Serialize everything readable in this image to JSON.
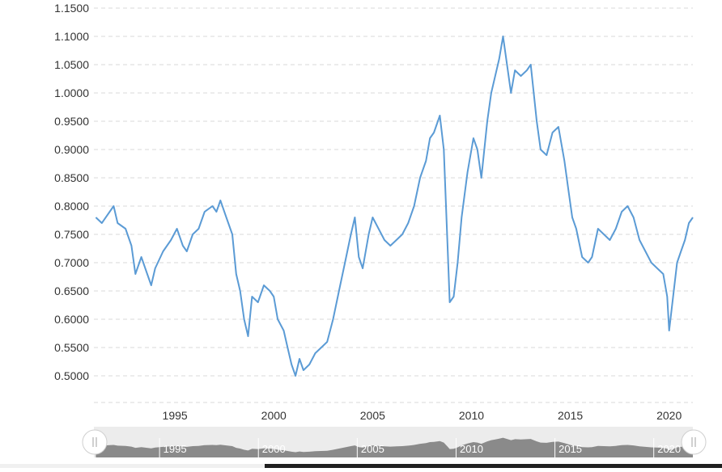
{
  "chart_data": {
    "type": "line",
    "title": "",
    "xlabel": "",
    "ylabel": "",
    "xlim": [
      1990.9,
      2021.2
    ],
    "ylim": [
      0.45,
      1.15
    ],
    "grid": true,
    "y_ticks": [
      "0.5000",
      "0.5500",
      "0.6000",
      "0.6500",
      "0.7000",
      "0.7500",
      "0.8000",
      "0.8500",
      "0.9000",
      "0.9500",
      "1.0000",
      "1.0500",
      "1.1000",
      "1.1500"
    ],
    "x_ticks": [
      "1995",
      "2000",
      "2005",
      "2010",
      "2015",
      "2020"
    ],
    "series": [
      {
        "color": "#5b9bd5",
        "points": [
          [
            1991.0,
            0.78
          ],
          [
            1991.3,
            0.77
          ],
          [
            1991.7,
            0.79
          ],
          [
            1991.9,
            0.8
          ],
          [
            1992.1,
            0.77
          ],
          [
            1992.5,
            0.76
          ],
          [
            1992.8,
            0.73
          ],
          [
            1993.0,
            0.68
          ],
          [
            1993.3,
            0.71
          ],
          [
            1993.6,
            0.68
          ],
          [
            1993.8,
            0.66
          ],
          [
            1994.0,
            0.69
          ],
          [
            1994.4,
            0.72
          ],
          [
            1994.8,
            0.74
          ],
          [
            1995.1,
            0.76
          ],
          [
            1995.4,
            0.73
          ],
          [
            1995.6,
            0.72
          ],
          [
            1995.9,
            0.75
          ],
          [
            1996.2,
            0.76
          ],
          [
            1996.5,
            0.79
          ],
          [
            1996.9,
            0.8
          ],
          [
            1997.1,
            0.79
          ],
          [
            1997.3,
            0.81
          ],
          [
            1997.6,
            0.78
          ],
          [
            1997.9,
            0.75
          ],
          [
            1998.1,
            0.68
          ],
          [
            1998.3,
            0.65
          ],
          [
            1998.5,
            0.6
          ],
          [
            1998.7,
            0.57
          ],
          [
            1998.9,
            0.64
          ],
          [
            1999.2,
            0.63
          ],
          [
            1999.5,
            0.66
          ],
          [
            1999.8,
            0.65
          ],
          [
            2000.0,
            0.64
          ],
          [
            2000.2,
            0.6
          ],
          [
            2000.5,
            0.58
          ],
          [
            2000.7,
            0.55
          ],
          [
            2000.9,
            0.52
          ],
          [
            2001.1,
            0.5
          ],
          [
            2001.3,
            0.53
          ],
          [
            2001.5,
            0.51
          ],
          [
            2001.8,
            0.52
          ],
          [
            2002.1,
            0.54
          ],
          [
            2002.4,
            0.55
          ],
          [
            2002.7,
            0.56
          ],
          [
            2003.0,
            0.6
          ],
          [
            2003.3,
            0.65
          ],
          [
            2003.6,
            0.7
          ],
          [
            2003.9,
            0.75
          ],
          [
            2004.1,
            0.78
          ],
          [
            2004.3,
            0.71
          ],
          [
            2004.5,
            0.69
          ],
          [
            2004.8,
            0.75
          ],
          [
            2005.0,
            0.78
          ],
          [
            2005.3,
            0.76
          ],
          [
            2005.6,
            0.74
          ],
          [
            2005.9,
            0.73
          ],
          [
            2006.2,
            0.74
          ],
          [
            2006.5,
            0.75
          ],
          [
            2006.8,
            0.77
          ],
          [
            2007.1,
            0.8
          ],
          [
            2007.4,
            0.85
          ],
          [
            2007.7,
            0.88
          ],
          [
            2007.9,
            0.92
          ],
          [
            2008.1,
            0.93
          ],
          [
            2008.4,
            0.96
          ],
          [
            2008.6,
            0.9
          ],
          [
            2008.8,
            0.72
          ],
          [
            2008.9,
            0.63
          ],
          [
            2009.1,
            0.64
          ],
          [
            2009.3,
            0.7
          ],
          [
            2009.5,
            0.78
          ],
          [
            2009.8,
            0.86
          ],
          [
            2010.1,
            0.92
          ],
          [
            2010.3,
            0.9
          ],
          [
            2010.5,
            0.85
          ],
          [
            2010.8,
            0.95
          ],
          [
            2011.0,
            1.0
          ],
          [
            2011.2,
            1.03
          ],
          [
            2011.4,
            1.06
          ],
          [
            2011.6,
            1.1
          ],
          [
            2011.8,
            1.05
          ],
          [
            2012.0,
            1.0
          ],
          [
            2012.2,
            1.04
          ],
          [
            2012.5,
            1.03
          ],
          [
            2012.8,
            1.04
          ],
          [
            2013.0,
            1.05
          ],
          [
            2013.3,
            0.95
          ],
          [
            2013.5,
            0.9
          ],
          [
            2013.8,
            0.89
          ],
          [
            2014.1,
            0.93
          ],
          [
            2014.4,
            0.94
          ],
          [
            2014.7,
            0.88
          ],
          [
            2014.9,
            0.83
          ],
          [
            2015.1,
            0.78
          ],
          [
            2015.3,
            0.76
          ],
          [
            2015.6,
            0.71
          ],
          [
            2015.9,
            0.7
          ],
          [
            2016.1,
            0.71
          ],
          [
            2016.4,
            0.76
          ],
          [
            2016.7,
            0.75
          ],
          [
            2017.0,
            0.74
          ],
          [
            2017.3,
            0.76
          ],
          [
            2017.6,
            0.79
          ],
          [
            2017.9,
            0.8
          ],
          [
            2018.2,
            0.78
          ],
          [
            2018.5,
            0.74
          ],
          [
            2018.8,
            0.72
          ],
          [
            2019.1,
            0.7
          ],
          [
            2019.4,
            0.69
          ],
          [
            2019.7,
            0.68
          ],
          [
            2019.9,
            0.64
          ],
          [
            2020.0,
            0.58
          ],
          [
            2020.2,
            0.64
          ],
          [
            2020.4,
            0.7
          ],
          [
            2020.6,
            0.72
          ],
          [
            2020.8,
            0.74
          ],
          [
            2021.0,
            0.77
          ],
          [
            2021.2,
            0.78
          ]
        ]
      }
    ]
  },
  "navigator": {
    "labels": [
      "1995",
      "2000",
      "2005",
      "2010",
      "2015",
      "2020"
    ],
    "left_handle_icon": "grip-icon",
    "right_handle_icon": "grip-icon"
  }
}
